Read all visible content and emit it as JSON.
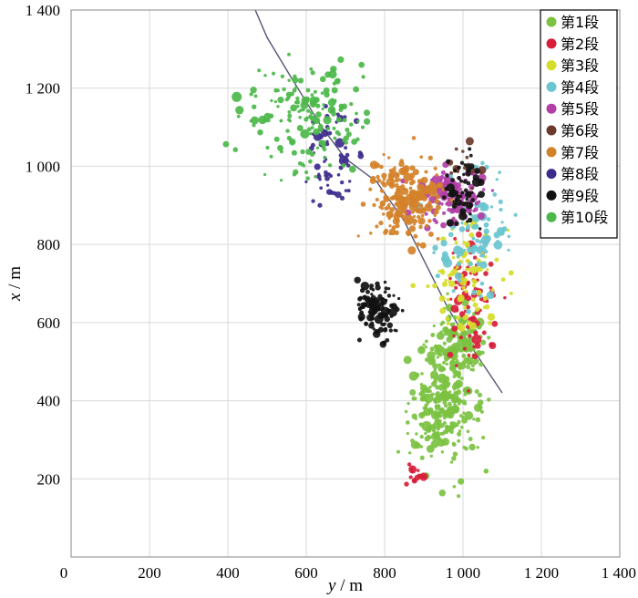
{
  "chart_data": {
    "type": "scatter",
    "title": "",
    "xlabel": {
      "var": "y",
      "unit": " / m"
    },
    "ylabel": {
      "var": "x",
      "unit": " / m"
    },
    "xlim": [
      0,
      1400
    ],
    "ylim": [
      0,
      1400
    ],
    "xticks": [
      {
        "value": 0,
        "label": "0"
      },
      {
        "value": 200,
        "label": "200"
      },
      {
        "value": 400,
        "label": "400"
      },
      {
        "value": 600,
        "label": "600"
      },
      {
        "value": 800,
        "label": "800"
      },
      {
        "value": 1000,
        "label": "1 000"
      },
      {
        "value": 1200,
        "label": "1 200"
      },
      {
        "value": 1400,
        "label": "1 400"
      }
    ],
    "yticks": [
      {
        "value": 200,
        "label": "200"
      },
      {
        "value": 400,
        "label": "400"
      },
      {
        "value": 600,
        "label": "600"
      },
      {
        "value": 800,
        "label": "800"
      },
      {
        "value": 1000,
        "label": "1 000"
      },
      {
        "value": 1200,
        "label": "1 200"
      },
      {
        "value": 1400,
        "label": "1 400"
      }
    ],
    "grid": true,
    "legend_position": "top-right",
    "series": [
      {
        "name": "第1段",
        "color": "#7cc242",
        "clusters": [
          [
            950,
            400,
            60,
            110,
            300
          ],
          [
            1000,
            550,
            40,
            60,
            100
          ]
        ]
      },
      {
        "name": "第2段",
        "color": "#d81e3a",
        "clusters": [
          [
            1020,
            650,
            45,
            120,
            90
          ],
          [
            880,
            200,
            20,
            20,
            15
          ]
        ]
      },
      {
        "name": "第3段",
        "color": "#d6dc2a",
        "clusters": [
          [
            1000,
            720,
            60,
            100,
            90
          ]
        ]
      },
      {
        "name": "第4段",
        "color": "#6ac6d0",
        "clusters": [
          [
            1030,
            820,
            70,
            110,
            90
          ]
        ]
      },
      {
        "name": "第5段",
        "color": "#b23ea6",
        "clusters": [
          [
            960,
            930,
            60,
            50,
            110
          ]
        ]
      },
      {
        "name": "第6段",
        "color": "#6b3a2c",
        "clusters": [
          [
            1000,
            1000,
            30,
            40,
            15
          ]
        ]
      },
      {
        "name": "第7段",
        "color": "#d4822a",
        "clusters": [
          [
            850,
            920,
            60,
            70,
            200
          ]
        ]
      },
      {
        "name": "第8段",
        "color": "#3d2a8c",
        "clusters": [
          [
            660,
            1010,
            50,
            100,
            60
          ]
        ]
      },
      {
        "name": "第9段",
        "color": "#111111",
        "clusters": [
          [
            780,
            640,
            40,
            50,
            110
          ],
          [
            1000,
            940,
            30,
            60,
            60
          ]
        ]
      },
      {
        "name": "第10段",
        "color": "#4cb84a",
        "clusters": [
          [
            600,
            1120,
            110,
            100,
            170
          ]
        ]
      }
    ],
    "lines": [
      {
        "color": "#555577",
        "points": [
          [
            470,
            1400
          ],
          [
            500,
            1330
          ],
          [
            560,
            1230
          ],
          [
            640,
            1100
          ],
          [
            700,
            1020
          ],
          [
            780,
            960
          ],
          [
            850,
            860
          ],
          [
            900,
            760
          ],
          [
            960,
            640
          ],
          [
            1020,
            540
          ],
          [
            1100,
            420
          ]
        ]
      }
    ]
  }
}
